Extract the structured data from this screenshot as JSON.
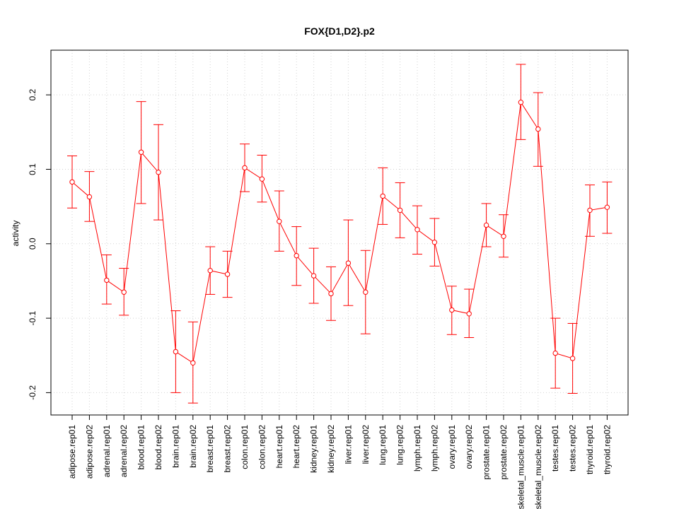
{
  "chart_data": {
    "type": "line",
    "title": "FOX{D1,D2}.p2",
    "xlabel": "",
    "ylabel": "activity",
    "ylim": [
      -0.23,
      0.26
    ],
    "yticks": [
      -0.2,
      -0.1,
      0.0,
      0.1,
      0.2
    ],
    "ytick_labels": [
      "-0.2",
      "-0.1",
      "0.0",
      "0.1",
      "0.2"
    ],
    "grid": true,
    "error_bars": true,
    "color": "#ff0000",
    "grid_color": "#d3d3d3",
    "categories": [
      "adipose.rep01",
      "adipose.rep02",
      "adrenal.rep01",
      "adrenal.rep02",
      "blood.rep01",
      "blood.rep02",
      "brain.rep01",
      "brain.rep02",
      "breast.rep01",
      "breast.rep02",
      "colon.rep01",
      "colon.rep02",
      "heart.rep01",
      "heart.rep02",
      "kidney.rep01",
      "kidney.rep02",
      "liver.rep01",
      "liver.rep02",
      "lung.rep01",
      "lung.rep02",
      "lymph.rep01",
      "lymph.rep02",
      "ovary.rep01",
      "ovary.rep02",
      "prostate.rep01",
      "prostate.rep02",
      "skeletal_muscle.rep01",
      "skeletal_muscle.rep02",
      "testes.rep01",
      "testes.rep02",
      "thyroid.rep01",
      "thyroid.rep02"
    ],
    "values": [
      0.083,
      0.063,
      -0.049,
      -0.065,
      0.123,
      0.096,
      -0.145,
      -0.16,
      -0.036,
      -0.041,
      0.102,
      0.087,
      0.03,
      -0.016,
      -0.043,
      -0.067,
      -0.026,
      -0.065,
      0.064,
      0.045,
      0.019,
      0.002,
      -0.089,
      -0.094,
      0.025,
      0.01,
      0.19,
      0.154,
      -0.147,
      -0.154,
      0.045,
      0.049
    ],
    "lower": [
      0.048,
      0.03,
      -0.081,
      -0.096,
      0.054,
      0.032,
      -0.2,
      -0.214,
      -0.068,
      -0.072,
      0.07,
      0.056,
      -0.01,
      -0.056,
      -0.08,
      -0.103,
      -0.083,
      -0.121,
      0.026,
      0.008,
      -0.014,
      -0.03,
      -0.122,
      -0.126,
      -0.004,
      -0.018,
      0.14,
      0.104,
      -0.194,
      -0.201,
      0.01,
      0.014
    ],
    "upper": [
      0.118,
      0.097,
      -0.015,
      -0.033,
      0.191,
      0.16,
      -0.09,
      -0.105,
      -0.004,
      -0.01,
      0.134,
      0.119,
      0.071,
      0.023,
      -0.006,
      -0.031,
      0.032,
      -0.009,
      0.102,
      0.082,
      0.051,
      0.034,
      -0.057,
      -0.061,
      0.054,
      0.039,
      0.241,
      0.203,
      -0.1,
      -0.107,
      0.079,
      0.083
    ]
  }
}
